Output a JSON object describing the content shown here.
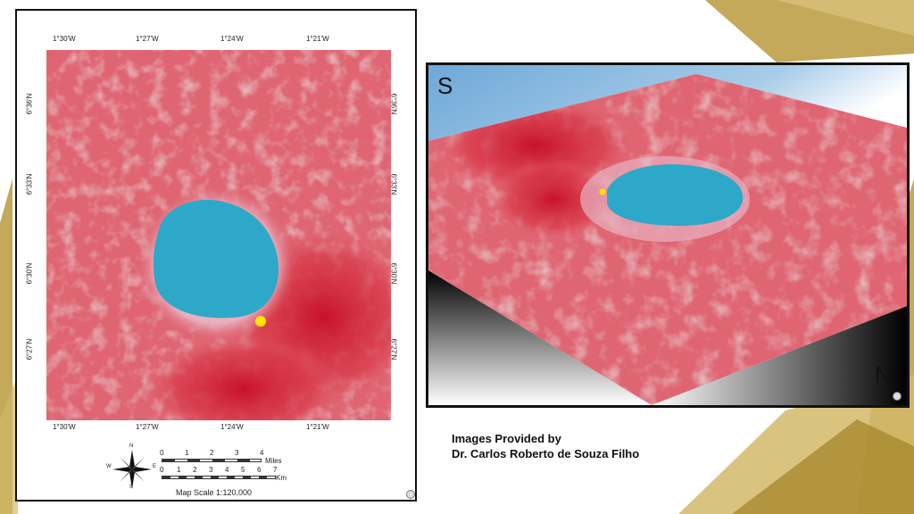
{
  "map": {
    "lon_top": [
      "1°30'W",
      "1°27'W",
      "1°24'W",
      "1°21'W"
    ],
    "lon_bottom": [
      "1°30'W",
      "1°27'W",
      "1°24'W",
      "1°21'W"
    ],
    "lat_left": [
      "6°36'N",
      "6°33'N",
      "6°30'N",
      "6°27'N"
    ],
    "lat_right": [
      "6°36'N",
      "6°33'N",
      "6°30'N",
      "6°27'N"
    ],
    "scale": {
      "miles_ticks": [
        "0",
        "1",
        "2",
        "3",
        "4"
      ],
      "miles_unit": "Miles",
      "km_ticks": [
        "0",
        "1",
        "2",
        "3",
        "4",
        "5",
        "6",
        "7"
      ],
      "km_unit": "Km",
      "map_scale": "Map Scale 1:120,000"
    },
    "compass": {
      "n": "N",
      "s": "S",
      "e": "E",
      "w": "W"
    }
  },
  "view3d": {
    "label_south": "S",
    "label_north": "N"
  },
  "credit": {
    "line1": "Images Provided by",
    "line2": "Dr. Carlos Roberto de Souza Filho"
  },
  "colors": {
    "lake": "#2ea8c8",
    "vegetation": "#e0606e",
    "ridge": "#c8122a",
    "marker": "#ffe400",
    "gold": "#b89a3c"
  }
}
